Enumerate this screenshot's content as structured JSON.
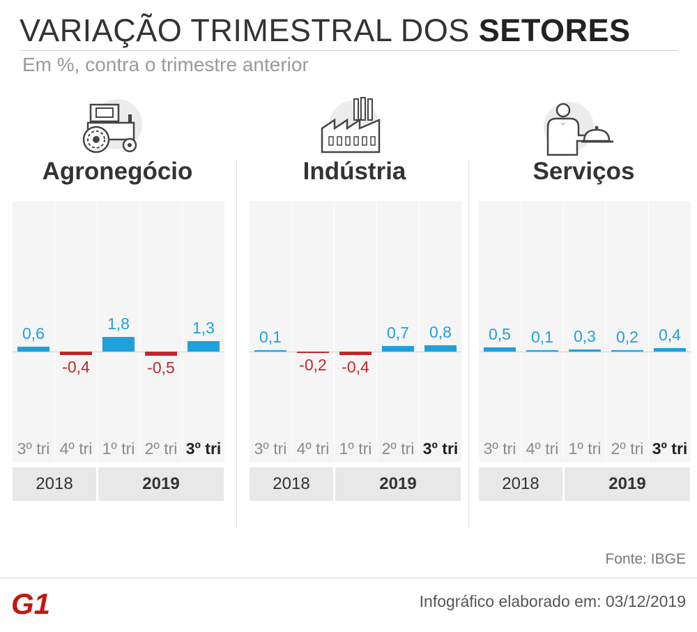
{
  "header": {
    "title_regular": "VARIAÇÃO TRIMESTRAL DOS ",
    "title_bold": "SETORES",
    "subtitle": "Em %, contra o trimestre anterior"
  },
  "colors": {
    "positive": "#1fa0dc",
    "negative": "#c0272d",
    "column_bg": "#f5f5f5",
    "year_band": "#e8e8e8",
    "logo": "#c4170c"
  },
  "chart_data": [
    {
      "type": "bar",
      "title": "Agronegócio",
      "icon": "tractor-icon",
      "categories": [
        "3º tri",
        "4º tri",
        "1º tri",
        "2º tri",
        "3º tri"
      ],
      "values": [
        0.6,
        -0.4,
        1.8,
        -0.5,
        1.3
      ],
      "value_labels": [
        "0,6",
        "-0,4",
        "1,8",
        "-0,5",
        "1,3"
      ],
      "year_groups": [
        {
          "label": "2018",
          "span": 2
        },
        {
          "label": "2019",
          "span": 3
        }
      ]
    },
    {
      "type": "bar",
      "title": "Indústria",
      "icon": "factory-icon",
      "categories": [
        "3º tri",
        "4º tri",
        "1º tri",
        "2º tri",
        "3º tri"
      ],
      "values": [
        0.1,
        -0.2,
        -0.4,
        0.7,
        0.8
      ],
      "value_labels": [
        "0,1",
        "-0,2",
        "-0,4",
        "0,7",
        "0,8"
      ],
      "year_groups": [
        {
          "label": "2018",
          "span": 2
        },
        {
          "label": "2019",
          "span": 3
        }
      ]
    },
    {
      "type": "bar",
      "title": "Serviços",
      "icon": "waiter-icon",
      "categories": [
        "3º tri",
        "4º tri",
        "1º tri",
        "2º tri",
        "3º tri"
      ],
      "values": [
        0.5,
        0.1,
        0.3,
        0.2,
        0.4
      ],
      "value_labels": [
        "0,5",
        "0,1",
        "0,3",
        "0,2",
        "0,4"
      ],
      "year_groups": [
        {
          "label": "2018",
          "span": 2
        },
        {
          "label": "2019",
          "span": 3
        }
      ]
    }
  ],
  "footer": {
    "source": "Fonte: IBGE",
    "logo_text": "G1",
    "credit": "Infográfico elaborado em: 03/12/2019"
  }
}
